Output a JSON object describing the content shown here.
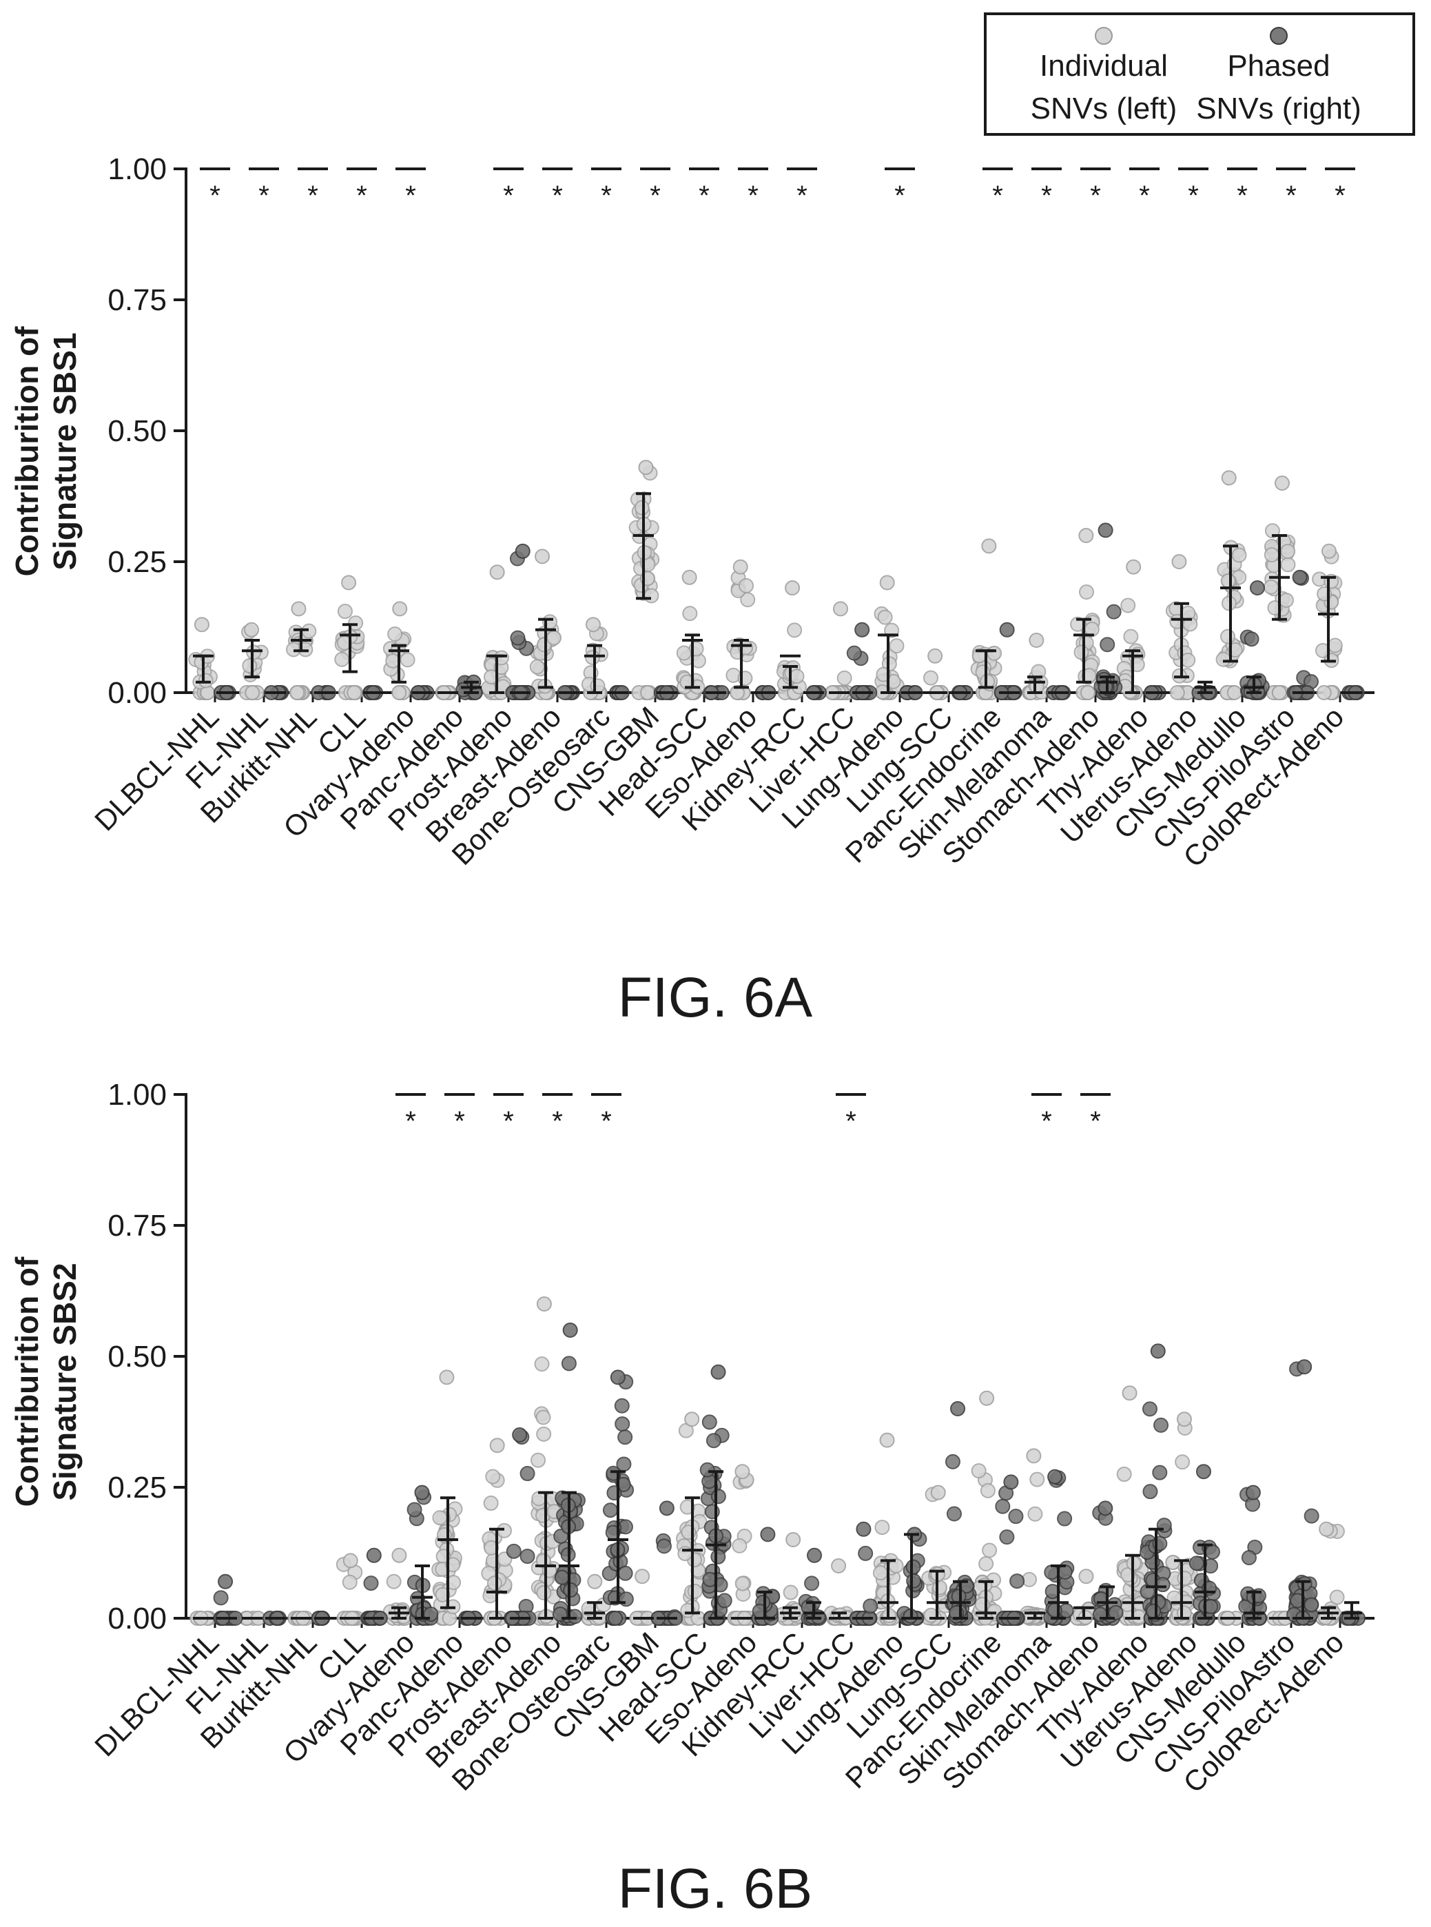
{
  "legend": {
    "individual_line1": "Individual",
    "individual_line2": "SNVs (left)",
    "phased_line1": "Phased",
    "phased_line2": "SNVs (right)"
  },
  "colors": {
    "individual": "#c9c9c9",
    "phased": "#6f6f6f",
    "axis": "#1a1a1a",
    "errorbar": "#1a1a1a"
  },
  "chart_data": [
    {
      "type": "scatter",
      "subtype": "strip-plot-with-errorbars",
      "figure_label": "FIG. 6A",
      "ylabel_line1": "Contriburition of",
      "ylabel_line2": "Signature SBS1",
      "ylim": [
        0,
        1
      ],
      "yticks": [
        "0.00",
        "0.25",
        "0.50",
        "0.75",
        "1.00"
      ],
      "categories": [
        "DLBCL-NHL",
        "FL-NHL",
        "Burkitt-NHL",
        "CLL",
        "Ovary-Adeno",
        "Panc-Adeno",
        "Prost-Adeno",
        "Breast-Adeno",
        "Bone-Osteosarc",
        "CNS-GBM",
        "Head-SCC",
        "Eso-Adeno",
        "Kidney-RCC",
        "Liver-HCC",
        "Lung-Adeno",
        "Lung-SCC",
        "Panc-Endocrine",
        "Skin-Melanoma",
        "Stomach-Adeno",
        "Thy-Adeno",
        "Uterus-Adeno",
        "CNS-Medullo",
        "CNS-PiloAstro",
        "ColoRect-Adeno"
      ],
      "series": [
        {
          "name": "Individual SNVs (left)",
          "median": [
            0.07,
            0.08,
            0.1,
            0.11,
            0.08,
            0.0,
            0.07,
            0.12,
            0.07,
            0.3,
            0.1,
            0.09,
            0.07,
            0.0,
            0.11,
            0.0,
            0.08,
            0.02,
            0.11,
            0.07,
            0.14,
            0.2,
            0.22,
            0.15
          ],
          "err_low": [
            0.02,
            0.03,
            0.08,
            0.04,
            0.02,
            0.0,
            0.0,
            0.01,
            0.0,
            0.18,
            0.01,
            0.01,
            0.01,
            0.0,
            0.0,
            0.0,
            0.01,
            0.0,
            0.02,
            0.0,
            0.03,
            0.06,
            0.14,
            0.06
          ],
          "err_high": [
            0.07,
            0.1,
            0.12,
            0.13,
            0.09,
            0.0,
            0.07,
            0.14,
            0.09,
            0.38,
            0.11,
            0.1,
            0.05,
            0.0,
            0.11,
            0.0,
            0.08,
            0.03,
            0.14,
            0.08,
            0.17,
            0.28,
            0.3,
            0.22
          ],
          "max": [
            0.13,
            0.12,
            0.16,
            0.21,
            0.16,
            0.0,
            0.23,
            0.26,
            0.13,
            0.43,
            0.22,
            0.24,
            0.2,
            0.16,
            0.21,
            0.07,
            0.28,
            0.1,
            0.3,
            0.24,
            0.25,
            0.41,
            0.4,
            0.27
          ]
        },
        {
          "name": "Phased SNVs (right)",
          "median": [
            0.0,
            0.0,
            0.0,
            0.0,
            0.0,
            0.01,
            0.0,
            0.0,
            0.0,
            0.0,
            0.0,
            0.0,
            0.0,
            0.0,
            0.0,
            0.0,
            0.0,
            0.0,
            0.02,
            0.0,
            0.01,
            0.01,
            0.0,
            0.0
          ],
          "err_low": [
            0.0,
            0.0,
            0.0,
            0.0,
            0.0,
            0.0,
            0.0,
            0.0,
            0.0,
            0.0,
            0.0,
            0.0,
            0.0,
            0.0,
            0.0,
            0.0,
            0.0,
            0.0,
            0.0,
            0.0,
            0.0,
            0.0,
            0.0,
            0.0
          ],
          "err_high": [
            0.0,
            0.0,
            0.0,
            0.0,
            0.0,
            0.02,
            0.0,
            0.0,
            0.0,
            0.0,
            0.0,
            0.0,
            0.0,
            0.0,
            0.0,
            0.0,
            0.0,
            0.0,
            0.03,
            0.0,
            0.02,
            0.03,
            0.0,
            0.0
          ],
          "max": [
            0.0,
            0.0,
            0.0,
            0.0,
            0.0,
            0.02,
            0.27,
            0.0,
            0.0,
            0.0,
            0.0,
            0.0,
            0.0,
            0.12,
            0.0,
            0.0,
            0.12,
            0.0,
            0.31,
            0.0,
            0.0,
            0.2,
            0.22,
            0.0
          ]
        }
      ],
      "significance": [
        {
          "category": "DLBCL-NHL",
          "label": "*"
        },
        {
          "category": "FL-NHL",
          "label": "*"
        },
        {
          "category": "Burkitt-NHL",
          "label": "*"
        },
        {
          "category": "CLL",
          "label": "*"
        },
        {
          "category": "Ovary-Adeno",
          "label": "*"
        },
        {
          "category": "Prost-Adeno",
          "label": "*"
        },
        {
          "category": "Breast-Adeno",
          "label": "*"
        },
        {
          "category": "Bone-Osteosarc",
          "label": "*"
        },
        {
          "category": "CNS-GBM",
          "label": "*"
        },
        {
          "category": "Head-SCC",
          "label": "*"
        },
        {
          "category": "Eso-Adeno",
          "label": "*"
        },
        {
          "category": "Kidney-RCC",
          "label": "*"
        },
        {
          "category": "Lung-Adeno",
          "label": "*"
        },
        {
          "category": "Panc-Endocrine",
          "label": "*"
        },
        {
          "category": "Skin-Melanoma",
          "label": "*"
        },
        {
          "category": "Stomach-Adeno",
          "label": "*"
        },
        {
          "category": "Thy-Adeno",
          "label": "*"
        },
        {
          "category": "Uterus-Adeno",
          "label": "*"
        },
        {
          "category": "CNS-Medullo",
          "label": "*"
        },
        {
          "category": "CNS-PiloAstro",
          "label": "*"
        },
        {
          "category": "ColoRect-Adeno",
          "label": "*"
        }
      ]
    },
    {
      "type": "scatter",
      "subtype": "strip-plot-with-errorbars",
      "figure_label": "FIG. 6B",
      "ylabel_line1": "Contriburition of",
      "ylabel_line2": "Signature SBS2",
      "ylim": [
        0,
        1
      ],
      "yticks": [
        "0.00",
        "0.25",
        "0.50",
        "0.75",
        "1.00"
      ],
      "categories": [
        "DLBCL-NHL",
        "FL-NHL",
        "Burkitt-NHL",
        "CLL",
        "Ovary-Adeno",
        "Panc-Adeno",
        "Prost-Adeno",
        "Breast-Adeno",
        "Bone-Osteosarc",
        "CNS-GBM",
        "Head-SCC",
        "Eso-Adeno",
        "Kidney-RCC",
        "Liver-HCC",
        "Lung-Adeno",
        "Lung-SCC",
        "Panc-Endocrine",
        "Skin-Melanoma",
        "Stomach-Adeno",
        "Thy-Adeno",
        "Uterus-Adeno",
        "CNS-Medullo",
        "CNS-PiloAstro",
        "ColoRect-Adeno"
      ],
      "series": [
        {
          "name": "Individual SNVs (left)",
          "median": [
            0.0,
            0.0,
            0.0,
            0.0,
            0.01,
            0.15,
            0.05,
            0.1,
            0.01,
            0.0,
            0.13,
            0.0,
            0.01,
            0.0,
            0.03,
            0.03,
            0.01,
            0.01,
            0.02,
            0.03,
            0.03,
            0.0,
            0.0,
            0.01
          ],
          "err_low": [
            0.0,
            0.0,
            0.0,
            0.0,
            0.0,
            0.02,
            0.0,
            0.0,
            0.0,
            0.0,
            0.01,
            0.0,
            0.0,
            0.0,
            0.0,
            0.0,
            0.0,
            0.0,
            0.0,
            0.0,
            0.0,
            0.0,
            0.0,
            0.0
          ],
          "err_high": [
            0.0,
            0.0,
            0.0,
            0.0,
            0.02,
            0.23,
            0.17,
            0.24,
            0.03,
            0.0,
            0.23,
            0.0,
            0.02,
            0.01,
            0.11,
            0.09,
            0.07,
            0.01,
            0.02,
            0.12,
            0.11,
            0.0,
            0.0,
            0.02
          ],
          "max": [
            0.0,
            0.0,
            0.0,
            0.11,
            0.12,
            0.46,
            0.33,
            0.6,
            0.07,
            0.08,
            0.38,
            0.28,
            0.15,
            0.1,
            0.34,
            0.24,
            0.42,
            0.31,
            0.08,
            0.43,
            0.38,
            0.0,
            0.0,
            0.17
          ]
        },
        {
          "name": "Phased SNVs (right)",
          "median": [
            0.0,
            0.0,
            0.0,
            0.0,
            0.04,
            0.0,
            0.0,
            0.1,
            0.15,
            0.0,
            0.14,
            0.0,
            0.01,
            0.0,
            0.0,
            0.03,
            0.0,
            0.03,
            0.03,
            0.06,
            0.05,
            0.01,
            0.0,
            0.01
          ],
          "err_low": [
            0.0,
            0.0,
            0.0,
            0.0,
            0.0,
            0.0,
            0.0,
            0.0,
            0.03,
            0.0,
            0.0,
            0.0,
            0.0,
            0.0,
            0.0,
            0.0,
            0.0,
            0.0,
            0.0,
            0.0,
            0.0,
            0.0,
            0.0,
            0.0
          ],
          "err_high": [
            0.0,
            0.0,
            0.0,
            0.0,
            0.1,
            0.0,
            0.0,
            0.24,
            0.28,
            0.0,
            0.28,
            0.05,
            0.03,
            0.0,
            0.16,
            0.07,
            0.0,
            0.1,
            0.06,
            0.17,
            0.14,
            0.05,
            0.07,
            0.03
          ],
          "max": [
            0.07,
            0.0,
            0.0,
            0.12,
            0.24,
            0.0,
            0.35,
            0.55,
            0.46,
            0.21,
            0.47,
            0.16,
            0.12,
            0.17,
            0.16,
            0.4,
            0.26,
            0.27,
            0.21,
            0.51,
            0.28,
            0.24,
            0.48,
            0.0
          ]
        }
      ],
      "significance": [
        {
          "category": "Ovary-Adeno",
          "label": "*"
        },
        {
          "category": "Panc-Adeno",
          "label": "*"
        },
        {
          "category": "Prost-Adeno",
          "label": "*"
        },
        {
          "category": "Breast-Adeno",
          "label": "*"
        },
        {
          "category": "Bone-Osteosarc",
          "label": "*"
        },
        {
          "category": "Liver-HCC",
          "label": "*"
        },
        {
          "category": "Skin-Melanoma",
          "label": "*"
        },
        {
          "category": "Stomach-Adeno",
          "label": "*"
        }
      ]
    }
  ]
}
